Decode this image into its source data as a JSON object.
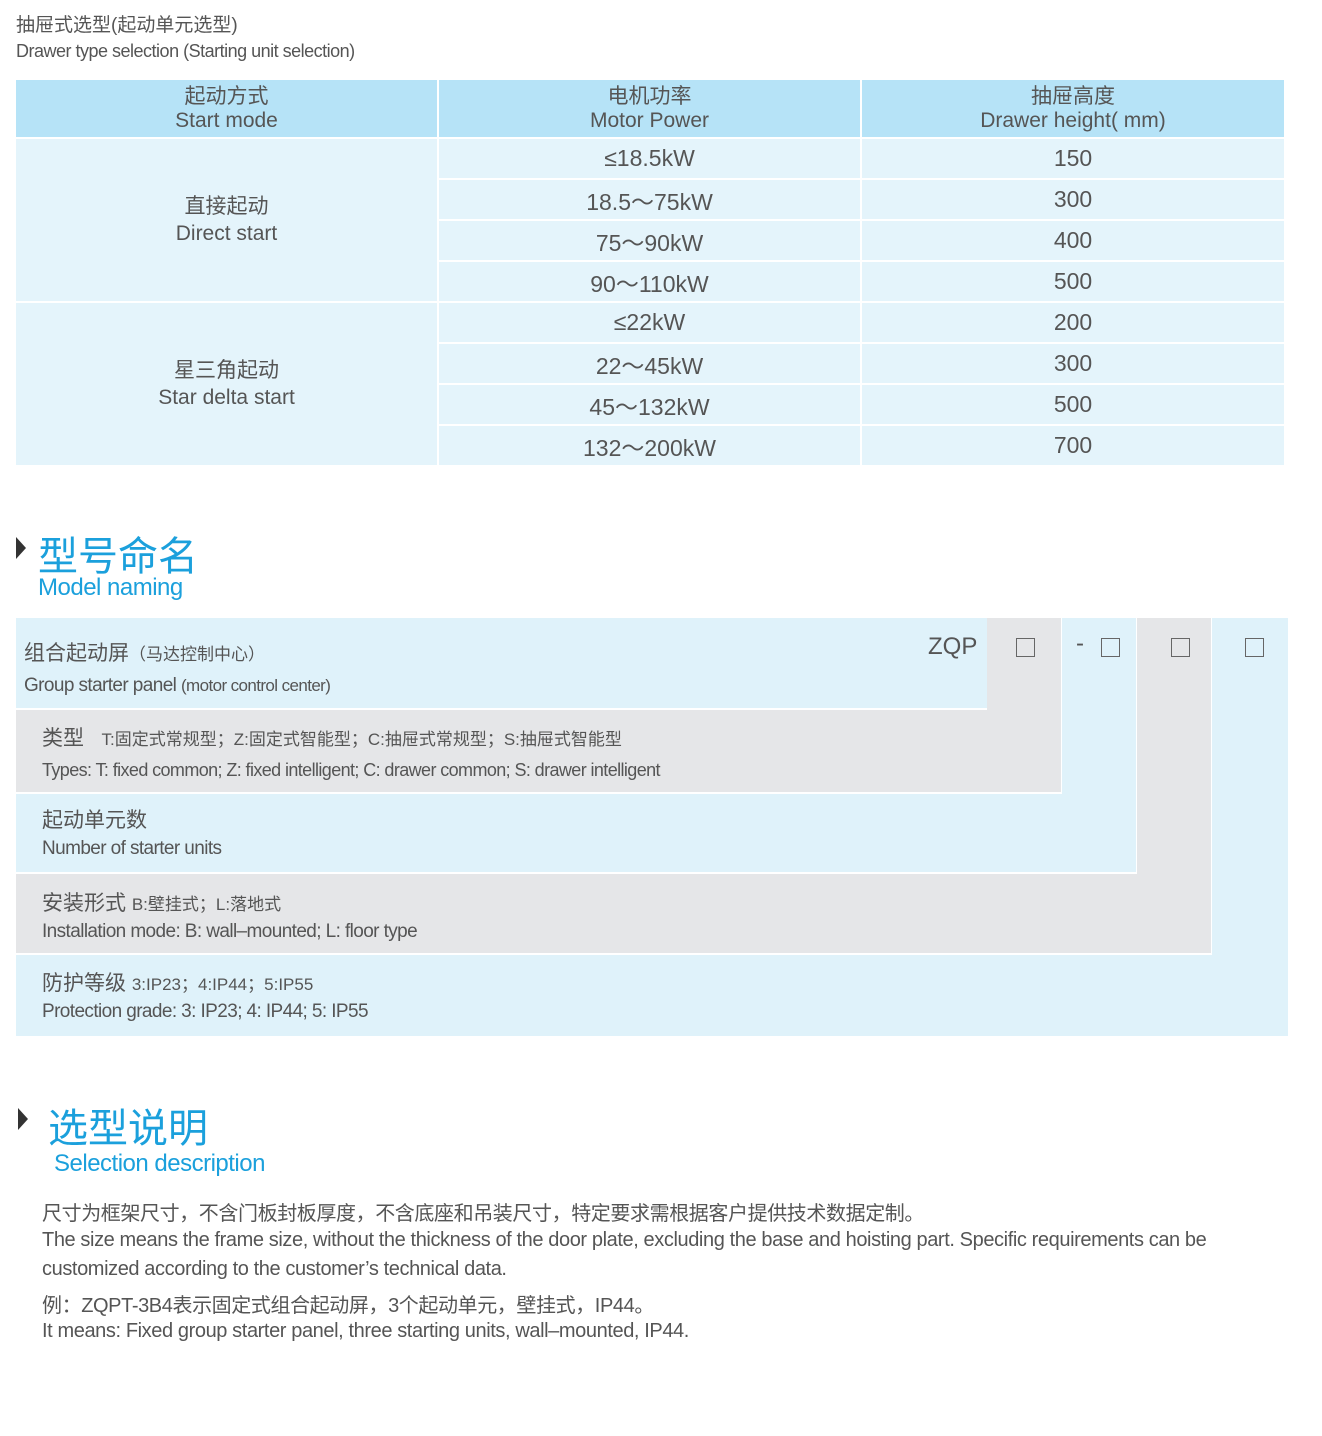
{
  "drawer_section": {
    "title_cn": "抽屉式选型(起动单元选型)",
    "title_en": "Drawer type selection (Starting unit selection)"
  },
  "table": {
    "headers": [
      {
        "cn": "起动方式",
        "en": "Start mode"
      },
      {
        "cn": "电机功率",
        "en": "Motor Power"
      },
      {
        "cn": "抽屉高度",
        "en": "Drawer height( mm)"
      }
    ],
    "groups": [
      {
        "cn": "直接起动",
        "en": "Direct start",
        "rows": [
          [
            "≤18.5kW",
            "150"
          ],
          [
            "18.5～75kW",
            "300"
          ],
          [
            "75～90kW",
            "400"
          ],
          [
            "90～110kW",
            "500"
          ]
        ]
      },
      {
        "cn": "星三角起动",
        "en": "Star delta start",
        "rows": [
          [
            "≤22kW",
            "200"
          ],
          [
            "22～45kW",
            "300"
          ],
          [
            "45～132kW",
            "500"
          ],
          [
            "132～200kW",
            "700"
          ]
        ]
      }
    ]
  },
  "model_naming": {
    "title_cn": "型号命名",
    "title_en": "Model naming",
    "prefix": "ZQP",
    "dash": "-",
    "rows": [
      {
        "cn": "组合起动屏",
        "cn_note": "（马达控制中心）",
        "en": "Group starter panel",
        "en_note": "(motor control center)"
      },
      {
        "cn": "类型",
        "cn_note": "T:固定式常规型；Z:固定式智能型；C:抽屉式常规型；S:抽屉式智能型",
        "en": "Types: T: fixed common; Z: fixed intelligent; C: drawer common; S: drawer intelligent"
      },
      {
        "cn": "起动单元数",
        "en": "Number  of  starter units"
      },
      {
        "cn": "安装形式",
        "cn_note": "B:壁挂式；L:落地式",
        "en": "Installation mode: B: wall–mounted; L: floor type"
      },
      {
        "cn": "防护等级",
        "cn_note": "3:IP23；4:IP44；5:IP55",
        "en": "Protection grade:  3: IP23; 4: IP44; 5: IP55"
      }
    ]
  },
  "selection": {
    "title_cn": "选型说明",
    "title_en": "Selection description",
    "lines": [
      "尺寸为框架尺寸，不含门板封板厚度，不含底座和吊装尺寸，特定要求需根据客户提供技术数据定制。",
      "The size means the frame size, without the thickness of the door plate, excluding the base and hoisting part. Specific requirements can be",
      "customized according to the customer’s technical data.",
      "例：ZQPT-3B4表示固定式组合起动屏，3个起动单元，壁挂式，IP44。",
      "It means: Fixed group starter panel, three starting units, wall–mounted, IP44."
    ]
  },
  "colors": {
    "accent": "#1ba0dc",
    "header_bg": "#b6e3f7",
    "cell_bg": "#e4f4fb",
    "gray_bg": "#e5e6e8"
  }
}
